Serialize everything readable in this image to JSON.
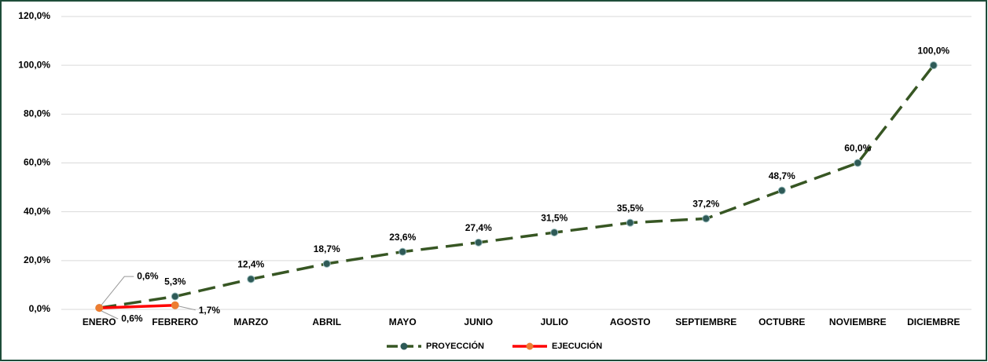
{
  "chart_data": {
    "type": "line",
    "categories": [
      "ENERO",
      "FEBRERO",
      "MARZO",
      "ABRIL",
      "MAYO",
      "JUNIO",
      "JULIO",
      "AGOSTO",
      "SEPTIEMBRE",
      "OCTUBRE",
      "NOVIEMBRE",
      "DICIEMBRE"
    ],
    "series": [
      {
        "name": "PROYECCIÓN",
        "color": "#375623",
        "marker_color": "#2e5a57",
        "dashed": true,
        "values": [
          0.6,
          5.3,
          12.4,
          18.7,
          23.6,
          27.4,
          31.5,
          35.5,
          37.2,
          48.7,
          60.0,
          100.0
        ],
        "value_labels": [
          "0,6%",
          "5,3%",
          "12,4%",
          "18,7%",
          "23,6%",
          "27,4%",
          "31,5%",
          "35,5%",
          "37,2%",
          "48,7%",
          "60,0%",
          "100,0%"
        ]
      },
      {
        "name": "EJECUCIÓN",
        "color": "#ff0000",
        "marker_color": "#ed7d31",
        "dashed": false,
        "values": [
          0.6,
          1.7,
          null,
          null,
          null,
          null,
          null,
          null,
          null,
          null,
          null,
          null
        ],
        "value_labels": [
          "0,6%",
          "1,7%",
          null,
          null,
          null,
          null,
          null,
          null,
          null,
          null,
          null,
          null
        ]
      }
    ],
    "ylim": [
      0,
      120
    ],
    "yticks": [
      {
        "value": 0,
        "label": "0,0%"
      },
      {
        "value": 20,
        "label": "20,0%"
      },
      {
        "value": 40,
        "label": "40,0%"
      },
      {
        "value": 60,
        "label": "60,0%"
      },
      {
        "value": 80,
        "label": "80,0%"
      },
      {
        "value": 100,
        "label": "100,0%"
      },
      {
        "value": 120,
        "label": "120,0%"
      }
    ],
    "grid": true
  }
}
